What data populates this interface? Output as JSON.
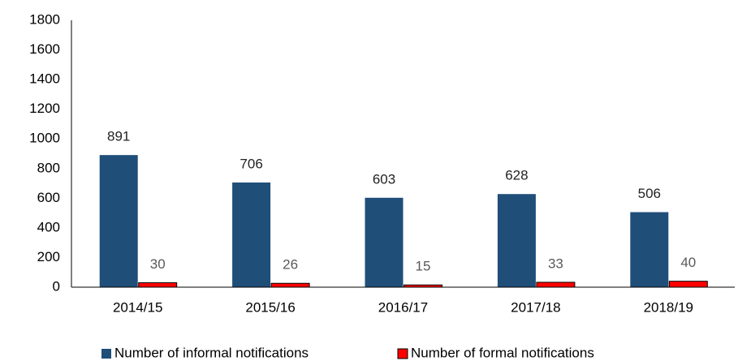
{
  "chart_data": {
    "type": "bar",
    "categories": [
      "2014/15",
      "2015/16",
      "2016/17",
      "2017/18",
      "2018/19"
    ],
    "series": [
      {
        "name": "Number of informal notifications",
        "color": "#1f4e79",
        "values": [
          891,
          706,
          603,
          628,
          506
        ]
      },
      {
        "name": "Number of formal notifications",
        "color": "#ff0000",
        "values": [
          30,
          26,
          15,
          33,
          40
        ]
      }
    ],
    "ylim": [
      0,
      1800
    ],
    "yticks": [
      0,
      200,
      400,
      600,
      800,
      1000,
      1200,
      1400,
      1600,
      1800
    ],
    "grid": false,
    "legend": "bottom"
  }
}
